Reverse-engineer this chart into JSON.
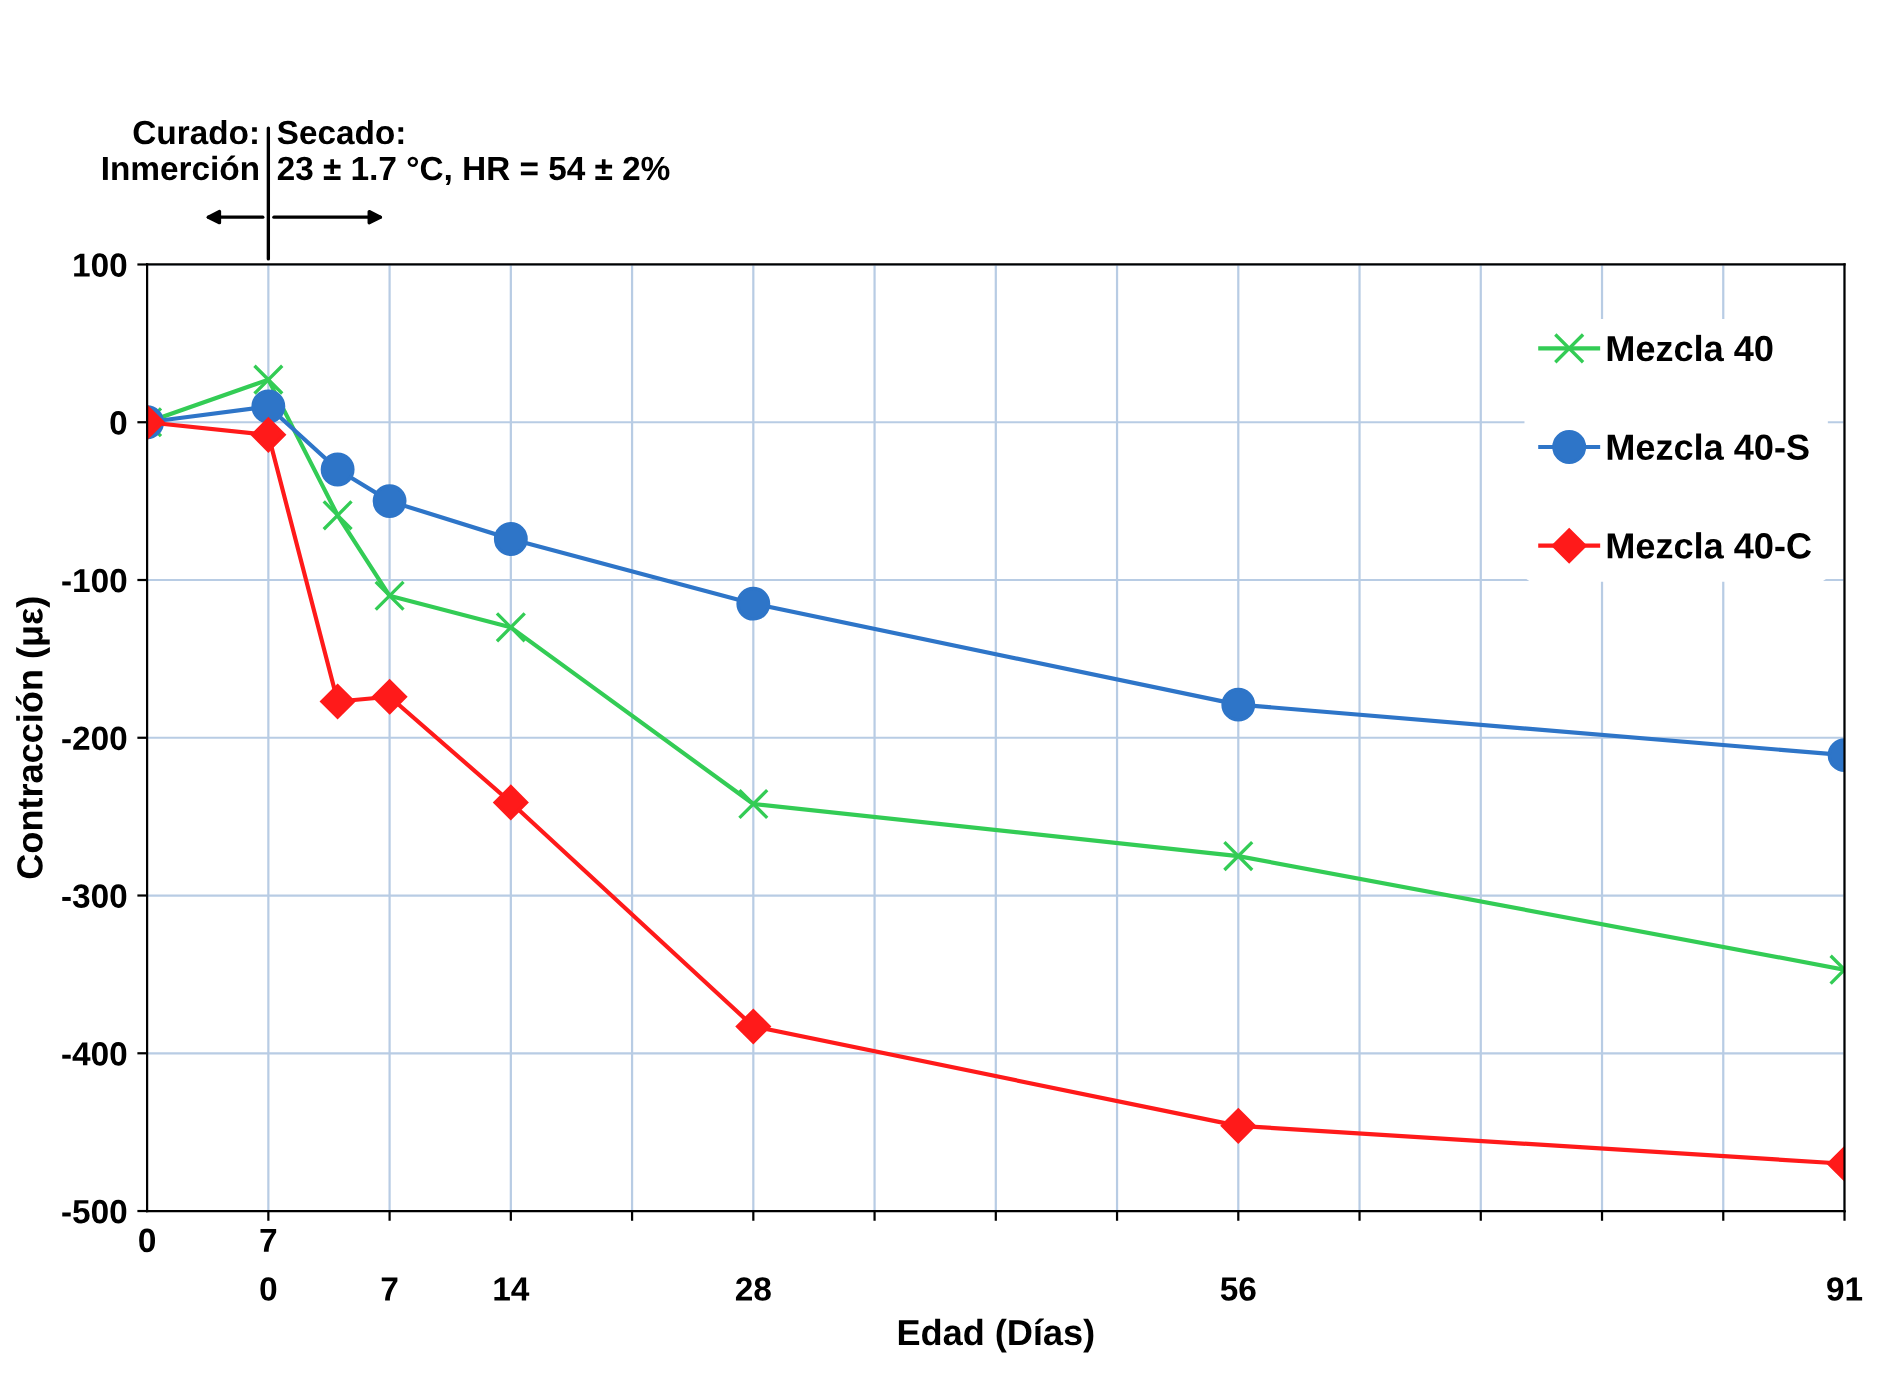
{
  "chart_data": {
    "type": "line",
    "xlabel": "Edad (Días)",
    "ylabel": "Contracción (με)",
    "xlim": [
      -7,
      91
    ],
    "ylim": [
      -500,
      100
    ],
    "x2lim": [
      0,
      98
    ],
    "x2ticks": [
      0,
      7
    ],
    "xticks": [
      0,
      7,
      14,
      {
        "value": 21,
        "label": null
      },
      28,
      {
        "value": 35,
        "label": null
      },
      {
        "value": 42,
        "label": null
      },
      {
        "value": 49,
        "label": null
      },
      56,
      {
        "value": 63,
        "label": null
      },
      {
        "value": 70,
        "label": null
      },
      {
        "value": 77,
        "label": null
      },
      {
        "value": 84,
        "label": null
      },
      91
    ],
    "yticks": [
      -500,
      -400,
      -300,
      -200,
      -100,
      0,
      100
    ],
    "grid": true,
    "legend": "top right",
    "annotations": [
      "Curado:\nInmerción",
      "Secado:\n23 ± 1.7 °C, HR = 54 ± 2%"
    ],
    "series": [
      {
        "name": "Mezcla 40",
        "color": "#33cc55",
        "marker": "cross",
        "x": [
          -7,
          0,
          4,
          7,
          14,
          28,
          56,
          91
        ],
        "values": [
          0,
          27,
          -59,
          -110,
          -130,
          -242,
          -275,
          -347
        ]
      },
      {
        "name": "Mezcla 40-S",
        "color": "#2e75c8",
        "marker": "circle",
        "x": [
          -7,
          0,
          4,
          7,
          14,
          28,
          56,
          91
        ],
        "values": [
          0,
          10,
          -30,
          -50,
          -74,
          -115,
          -179,
          -211
        ]
      },
      {
        "name": "Mezcla 40-C",
        "color": "#ff1a1a",
        "marker": "diamond",
        "x": [
          -7,
          0,
          4,
          7,
          14,
          28,
          56,
          91
        ],
        "values": [
          0,
          -8,
          -177,
          -174,
          -241,
          -383,
          -446,
          -470
        ]
      }
    ]
  }
}
